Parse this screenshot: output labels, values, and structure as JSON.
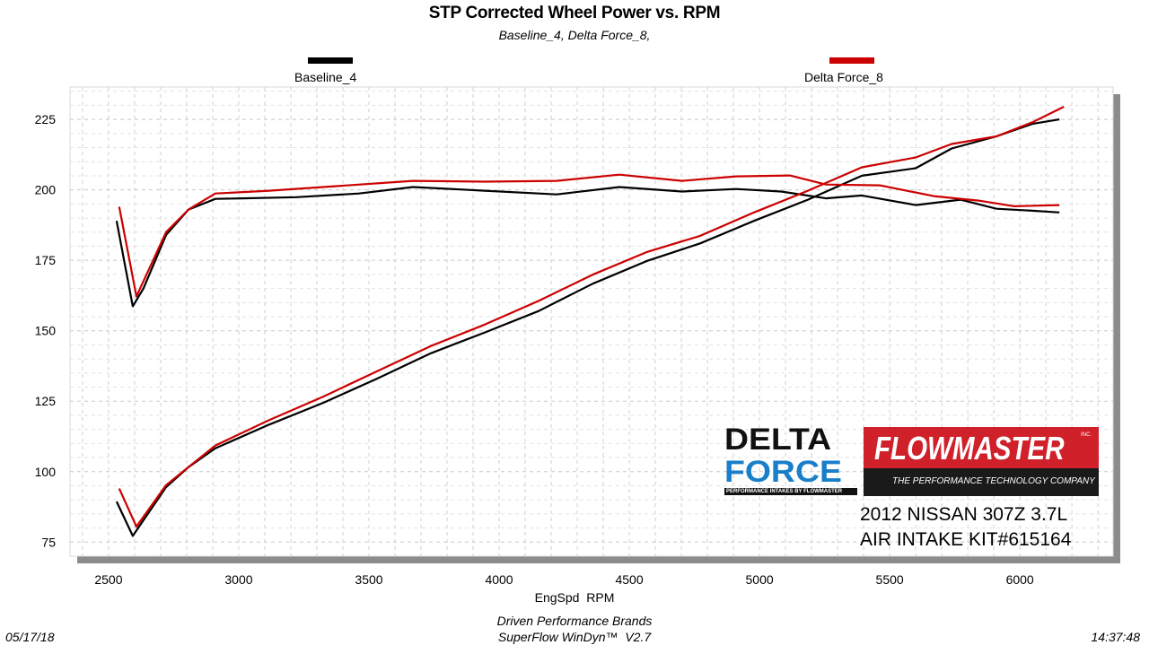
{
  "chart_data": {
    "type": "line",
    "title": "STP Corrected Wheel Power vs. RPM",
    "subtitle": "Baseline_4, Delta Force_8,",
    "xlabel": "EngSpd  RPM",
    "ylabel": "",
    "xlim": [
      2352,
      6358
    ],
    "ylim": [
      70,
      236.5
    ],
    "xticks": [
      2500,
      3000,
      3500,
      4000,
      4500,
      5000,
      5500,
      6000
    ],
    "yticks": [
      75,
      100,
      125,
      150,
      175,
      200,
      225
    ],
    "grid": true,
    "legend_placement": "top",
    "series": [
      {
        "name": "Baseline_4",
        "color": "#000000",
        "curves": [
          [
            [
              2531,
              189
            ],
            [
              2593,
              158.7
            ],
            [
              2634,
              165
            ],
            [
              2721,
              184
            ],
            [
              2807,
              193
            ],
            [
              2910,
              196.8
            ],
            [
              3014,
              197
            ],
            [
              3221,
              197.4
            ],
            [
              3462,
              198.7
            ],
            [
              3669,
              201
            ],
            [
              3945,
              199.7
            ],
            [
              4221,
              198.4
            ],
            [
              4462,
              201
            ],
            [
              4703,
              199.4
            ],
            [
              4910,
              200.3
            ],
            [
              5083,
              199.4
            ],
            [
              5255,
              197
            ],
            [
              5393,
              198
            ],
            [
              5600,
              194.6
            ],
            [
              5772,
              196.5
            ],
            [
              5910,
              193.3
            ],
            [
              6048,
              192.6
            ],
            [
              6152,
              192
            ]
          ],
          [
            [
              2531,
              89.4
            ],
            [
              2593,
              77.2
            ],
            [
              2721,
              94.5
            ],
            [
              2807,
              101.6
            ],
            [
              2910,
              108.3
            ],
            [
              3117,
              116.7
            ],
            [
              3324,
              124.4
            ],
            [
              3531,
              133
            ],
            [
              3738,
              142
            ],
            [
              3945,
              149.4
            ],
            [
              4152,
              157
            ],
            [
              4359,
              166.7
            ],
            [
              4566,
              174.7
            ],
            [
              4772,
              181
            ],
            [
              4979,
              189
            ],
            [
              5186,
              196.5
            ],
            [
              5393,
              205
            ],
            [
              5600,
              207.7
            ],
            [
              5738,
              214.7
            ],
            [
              5910,
              219
            ],
            [
              6048,
              223.4
            ],
            [
              6152,
              225
            ]
          ]
        ]
      },
      {
        "name": "Delta Force_8",
        "color": "#cc0000",
        "curves": [
          [
            [
              2541,
              194
            ],
            [
              2607,
              162.2
            ],
            [
              2721,
              185
            ],
            [
              2807,
              193
            ],
            [
              2910,
              198.7
            ],
            [
              3117,
              199.7
            ],
            [
              3324,
              201
            ],
            [
              3669,
              203.2
            ],
            [
              3945,
              202.9
            ],
            [
              4221,
              203.2
            ],
            [
              4462,
              205.4
            ],
            [
              4703,
              203.2
            ],
            [
              4910,
              204.8
            ],
            [
              5117,
              205.1
            ],
            [
              5255,
              201.9
            ],
            [
              5462,
              201.6
            ],
            [
              5669,
              197.8
            ],
            [
              5841,
              196.2
            ],
            [
              5979,
              194.2
            ],
            [
              6152,
              194.6
            ]
          ],
          [
            [
              2541,
              94
            ],
            [
              2607,
              80.5
            ],
            [
              2721,
              95.2
            ],
            [
              2910,
              109.3
            ],
            [
              3117,
              118.3
            ],
            [
              3324,
              126.6
            ],
            [
              3531,
              135.6
            ],
            [
              3738,
              144.6
            ],
            [
              3945,
              152.2
            ],
            [
              4152,
              160.6
            ],
            [
              4359,
              169.9
            ],
            [
              4566,
              177.9
            ],
            [
              4772,
              183.7
            ],
            [
              4979,
              192
            ],
            [
              5186,
              199.7
            ],
            [
              5393,
              208
            ],
            [
              5600,
              211.5
            ],
            [
              5738,
              216.3
            ],
            [
              5910,
              219
            ],
            [
              6048,
              224
            ],
            [
              6169,
              229.5
            ]
          ]
        ]
      }
    ],
    "annotations": {
      "delta_force_logo": "DELTA FORCE",
      "delta_force_tagline": "PERFORMANCE INTAKES BY FLOWMASTER",
      "flowmaster_logo": "FLOWMASTER",
      "flowmaster_inc": "INC.",
      "flowmaster_tagline": "THE PERFORMANCE TECHNOLOGY COMPANY",
      "vehicle_line1": "2012 NISSAN 307Z 3.7L",
      "vehicle_line2": "AIR INTAKE KIT#615164"
    }
  },
  "footer": {
    "date": "05/17/18",
    "company": "Driven Performance Brands",
    "software": "SuperFlow WinDyn™  V2.7",
    "time": "14:37:48"
  }
}
